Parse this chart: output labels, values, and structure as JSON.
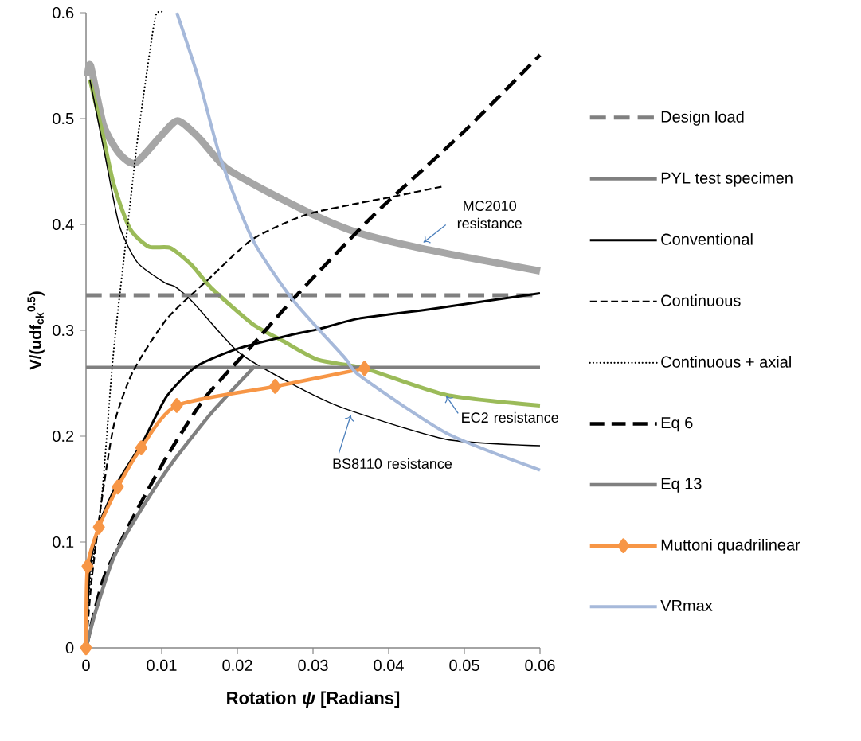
{
  "chart_data": {
    "type": "line",
    "xlabel": "Rotation *ψ* [Radians]",
    "ylabel": "V/(udf$_{ck}$$^{0.5}$)",
    "xlim": [
      0,
      0.06
    ],
    "ylim": [
      0,
      0.6
    ],
    "xticks": [
      0,
      0.01,
      0.02,
      0.03,
      0.04,
      0.05,
      0.06
    ],
    "yticks": [
      0,
      0.1,
      0.2,
      0.3,
      0.4,
      0.5,
      0.6
    ],
    "legend": "right",
    "annotations": [
      {
        "text": "MC2010 resistance",
        "x": 0.0446,
        "y": 0.383
      },
      {
        "text": "EC2 resistance",
        "x": 0.0476,
        "y": 0.238
      },
      {
        "text": "BS8110 resistance",
        "x": 0.035,
        "y": 0.22
      }
    ],
    "series": [
      {
        "color": "#a6a6a6",
        "line_style": "solid",
        "x": [
          0.0002,
          0.0006,
          0.0023,
          0.0044,
          0.0065,
          0.0097,
          0.0121,
          0.0149,
          0.0184,
          0.0237,
          0.0307,
          0.036,
          0.0446,
          0.06
        ],
        "values": [
          0.54,
          0.55,
          0.494,
          0.467,
          0.458,
          0.482,
          0.498,
          0.482,
          0.454,
          0.432,
          0.407,
          0.392,
          0.377,
          0.356
        ]
      },
      {
        "color": "#9bbb59",
        "line_style": "solid",
        "x": [
          0.0005,
          0.002,
          0.0037,
          0.0058,
          0.0083,
          0.0111,
          0.0139,
          0.0167,
          0.022,
          0.026,
          0.0307,
          0.0368,
          0.0476,
          0.06
        ],
        "values": [
          0.537,
          0.492,
          0.437,
          0.396,
          0.379,
          0.378,
          0.362,
          0.339,
          0.306,
          0.29,
          0.272,
          0.264,
          0.239,
          0.229
        ]
      },
      {
        "color": "#000000",
        "line_style": "solid",
        "x": [
          0.0005,
          0.0026,
          0.0044,
          0.0068,
          0.0104,
          0.0118,
          0.0142,
          0.0202,
          0.0273,
          0.0342,
          0.0476,
          0.06
        ],
        "values": [
          0.537,
          0.462,
          0.399,
          0.364,
          0.345,
          0.341,
          0.326,
          0.279,
          0.249,
          0.226,
          0.197,
          0.191
        ]
      },
      {
        "name": "Design load",
        "color": "#808080",
        "line_style": "dashed",
        "x": [
          0,
          0.06
        ],
        "values": [
          0.333,
          0.333
        ]
      },
      {
        "name": "PYL test specimen",
        "color": "#808080",
        "line_style": "solid",
        "x": [
          0,
          0.06
        ],
        "values": [
          0.265,
          0.265
        ]
      },
      {
        "name": "Conventional",
        "color": "#000000",
        "line_style": "solid",
        "x": [
          0,
          0.0005,
          0.0018,
          0.0044,
          0.0076,
          0.0107,
          0.0146,
          0.0202,
          0.0273,
          0.0307,
          0.036,
          0.0455,
          0.06
        ],
        "values": [
          0,
          0.076,
          0.118,
          0.159,
          0.196,
          0.238,
          0.266,
          0.283,
          0.296,
          0.301,
          0.311,
          0.32,
          0.335
        ]
      },
      {
        "name": "Continuous",
        "color": "#000000",
        "line_style": "dashed",
        "x": [
          0,
          0.0007,
          0.002,
          0.0037,
          0.0062,
          0.0107,
          0.016,
          0.022,
          0.029,
          0.036,
          0.0404,
          0.0472
        ],
        "values": [
          0,
          0.061,
          0.136,
          0.211,
          0.261,
          0.311,
          0.347,
          0.386,
          0.409,
          0.42,
          0.426,
          0.436
        ]
      },
      {
        "name": "Continuous + axial",
        "color": "#000000",
        "line_style": "dotted",
        "x": [
          0,
          0.0005,
          0.002,
          0.0034,
          0.0041,
          0.0053,
          0.0067,
          0.0079,
          0.0092,
          0.0103
        ],
        "values": [
          0,
          0.061,
          0.136,
          0.261,
          0.311,
          0.386,
          0.474,
          0.537,
          0.597,
          0.6
        ]
      },
      {
        "name": "Eq 6",
        "color": "#000000",
        "line_style": "dashed",
        "x": [
          0,
          0.0023,
          0.0062,
          0.0107,
          0.0157,
          0.022,
          0.0273,
          0.0346,
          0.0392,
          0.0497,
          0.06
        ],
        "values": [
          0,
          0.065,
          0.123,
          0.181,
          0.236,
          0.286,
          0.329,
          0.384,
          0.417,
          0.486,
          0.56
        ]
      },
      {
        "name": "Eq 13",
        "color": "#808080",
        "line_style": "solid",
        "x": [
          0,
          0.0013,
          0.0037,
          0.0073,
          0.0115,
          0.0167,
          0.0223
        ],
        "values": [
          0,
          0.035,
          0.086,
          0.131,
          0.176,
          0.223,
          0.266
        ]
      },
      {
        "name": "Muttoni quadrilinear",
        "color": "#f79646",
        "line_style": "solid",
        "marker": "diamond",
        "x": [
          0,
          0.0002,
          0.0017,
          0.0042,
          0.0073,
          0.012,
          0.025,
          0.0368
        ],
        "values": [
          0,
          0.077,
          0.114,
          0.152,
          0.189,
          0.229,
          0.247,
          0.264
        ]
      },
      {
        "name": "VRmax",
        "color": "#a6b9da",
        "line_style": "solid",
        "x": [
          0.012,
          0.0149,
          0.0178,
          0.022,
          0.0273,
          0.0342,
          0.0362,
          0.0476,
          0.06
        ],
        "values": [
          0.6,
          0.537,
          0.462,
          0.386,
          0.329,
          0.274,
          0.257,
          0.203,
          0.168
        ]
      }
    ]
  }
}
